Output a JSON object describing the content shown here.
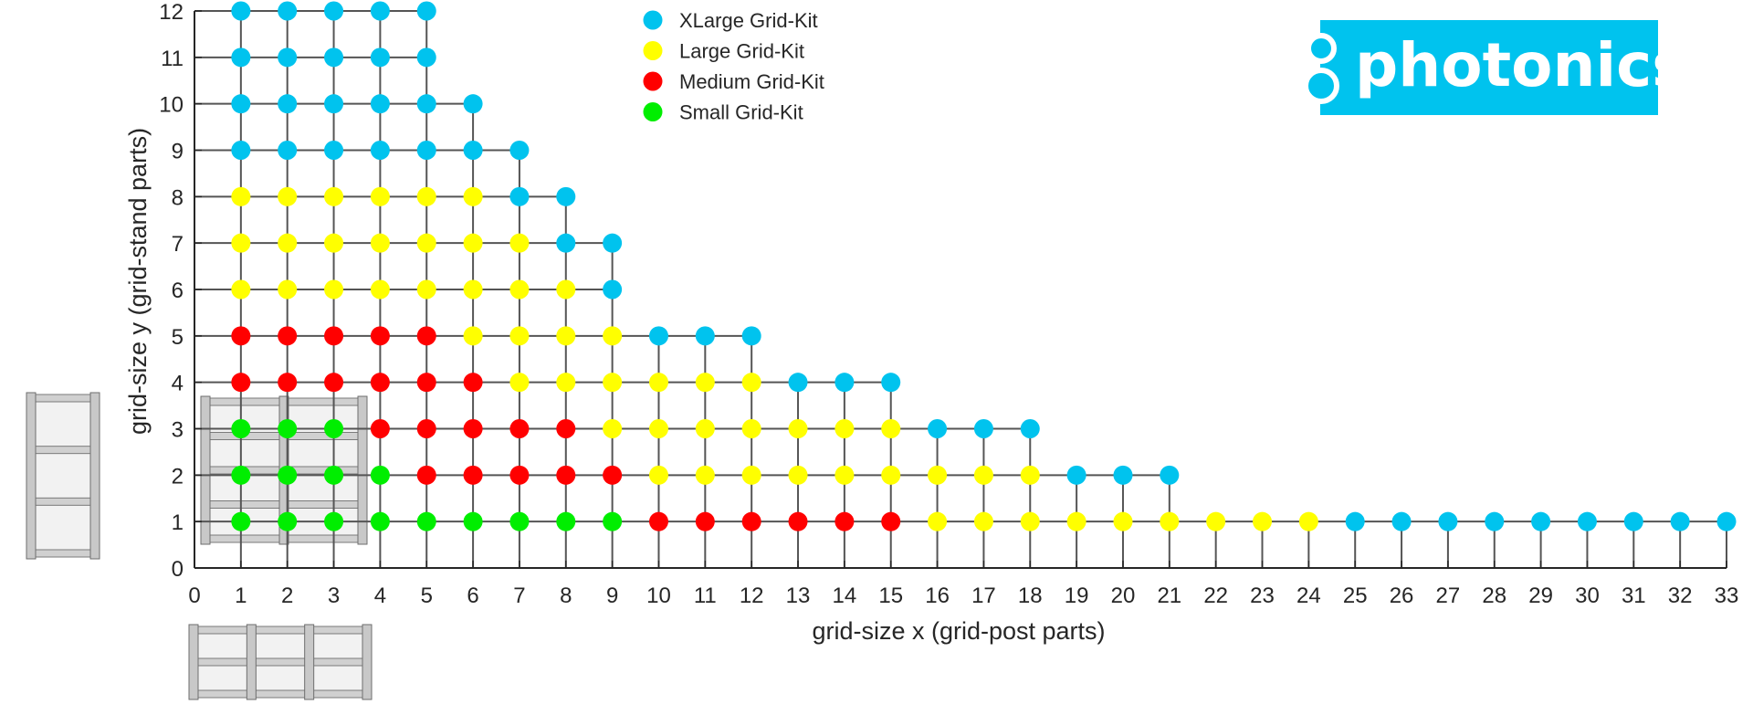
{
  "chart_data": {
    "type": "scatter",
    "xlabel": "grid-size x (grid-post parts)",
    "ylabel": "grid-size y (grid-stand parts)",
    "xlim": [
      0,
      33
    ],
    "ylim": [
      0,
      12
    ],
    "x_ticks": [
      0,
      1,
      2,
      3,
      4,
      5,
      6,
      7,
      8,
      9,
      10,
      11,
      12,
      13,
      14,
      15,
      16,
      17,
      18,
      19,
      20,
      21,
      22,
      23,
      24,
      25,
      26,
      27,
      28,
      29,
      30,
      31,
      32,
      33
    ],
    "y_ticks": [
      0,
      1,
      2,
      3,
      4,
      5,
      6,
      7,
      8,
      9,
      10,
      11,
      12
    ],
    "grid": false,
    "legend_position": "top-center",
    "series": [
      {
        "name": "XLarge Grid-Kit",
        "color": "#00c3ee",
        "points": [
          [
            1,
            12
          ],
          [
            2,
            12
          ],
          [
            3,
            12
          ],
          [
            4,
            12
          ],
          [
            5,
            12
          ],
          [
            1,
            11
          ],
          [
            2,
            11
          ],
          [
            3,
            11
          ],
          [
            4,
            11
          ],
          [
            5,
            11
          ],
          [
            1,
            10
          ],
          [
            2,
            10
          ],
          [
            3,
            10
          ],
          [
            4,
            10
          ],
          [
            5,
            10
          ],
          [
            6,
            10
          ],
          [
            1,
            9
          ],
          [
            2,
            9
          ],
          [
            3,
            9
          ],
          [
            4,
            9
          ],
          [
            5,
            9
          ],
          [
            6,
            9
          ],
          [
            7,
            9
          ],
          [
            7,
            8
          ],
          [
            8,
            8
          ],
          [
            8,
            7
          ],
          [
            9,
            7
          ],
          [
            9,
            6
          ],
          [
            10,
            5
          ],
          [
            11,
            5
          ],
          [
            12,
            5
          ],
          [
            13,
            4
          ],
          [
            14,
            4
          ],
          [
            15,
            4
          ],
          [
            16,
            3
          ],
          [
            17,
            3
          ],
          [
            18,
            3
          ],
          [
            19,
            2
          ],
          [
            20,
            2
          ],
          [
            21,
            2
          ],
          [
            25,
            1
          ],
          [
            26,
            1
          ],
          [
            27,
            1
          ],
          [
            28,
            1
          ],
          [
            29,
            1
          ],
          [
            30,
            1
          ],
          [
            31,
            1
          ],
          [
            32,
            1
          ],
          [
            33,
            1
          ]
        ]
      },
      {
        "name": "Large Grid-Kit",
        "color": "#ffff00",
        "points": [
          [
            1,
            8
          ],
          [
            2,
            8
          ],
          [
            3,
            8
          ],
          [
            4,
            8
          ],
          [
            5,
            8
          ],
          [
            6,
            8
          ],
          [
            1,
            7
          ],
          [
            2,
            7
          ],
          [
            3,
            7
          ],
          [
            4,
            7
          ],
          [
            5,
            7
          ],
          [
            6,
            7
          ],
          [
            7,
            7
          ],
          [
            1,
            6
          ],
          [
            2,
            6
          ],
          [
            3,
            6
          ],
          [
            4,
            6
          ],
          [
            5,
            6
          ],
          [
            6,
            6
          ],
          [
            7,
            6
          ],
          [
            8,
            6
          ],
          [
            6,
            5
          ],
          [
            7,
            5
          ],
          [
            8,
            5
          ],
          [
            9,
            5
          ],
          [
            7,
            4
          ],
          [
            8,
            4
          ],
          [
            9,
            4
          ],
          [
            10,
            4
          ],
          [
            11,
            4
          ],
          [
            12,
            4
          ],
          [
            9,
            3
          ],
          [
            10,
            3
          ],
          [
            11,
            3
          ],
          [
            12,
            3
          ],
          [
            13,
            3
          ],
          [
            14,
            3
          ],
          [
            15,
            3
          ],
          [
            10,
            2
          ],
          [
            11,
            2
          ],
          [
            12,
            2
          ],
          [
            13,
            2
          ],
          [
            14,
            2
          ],
          [
            15,
            2
          ],
          [
            16,
            2
          ],
          [
            17,
            2
          ],
          [
            18,
            2
          ],
          [
            16,
            1
          ],
          [
            17,
            1
          ],
          [
            18,
            1
          ],
          [
            19,
            1
          ],
          [
            20,
            1
          ],
          [
            21,
            1
          ],
          [
            22,
            1
          ],
          [
            23,
            1
          ],
          [
            24,
            1
          ]
        ]
      },
      {
        "name": "Medium Grid-Kit",
        "color": "#ff0000",
        "points": [
          [
            1,
            5
          ],
          [
            2,
            5
          ],
          [
            3,
            5
          ],
          [
            4,
            5
          ],
          [
            5,
            5
          ],
          [
            1,
            4
          ],
          [
            2,
            4
          ],
          [
            3,
            4
          ],
          [
            4,
            4
          ],
          [
            5,
            4
          ],
          [
            6,
            4
          ],
          [
            4,
            3
          ],
          [
            5,
            3
          ],
          [
            6,
            3
          ],
          [
            7,
            3
          ],
          [
            8,
            3
          ],
          [
            5,
            2
          ],
          [
            6,
            2
          ],
          [
            7,
            2
          ],
          [
            8,
            2
          ],
          [
            9,
            2
          ],
          [
            10,
            1
          ],
          [
            11,
            1
          ],
          [
            12,
            1
          ],
          [
            13,
            1
          ],
          [
            14,
            1
          ],
          [
            15,
            1
          ]
        ]
      },
      {
        "name": "Small Grid-Kit",
        "color": "#00ee00",
        "points": [
          [
            1,
            3
          ],
          [
            2,
            3
          ],
          [
            3,
            3
          ],
          [
            1,
            2
          ],
          [
            2,
            2
          ],
          [
            3,
            2
          ],
          [
            4,
            2
          ],
          [
            1,
            1
          ],
          [
            2,
            1
          ],
          [
            3,
            1
          ],
          [
            4,
            1
          ],
          [
            5,
            1
          ],
          [
            6,
            1
          ],
          [
            7,
            1
          ],
          [
            8,
            1
          ],
          [
            9,
            1
          ]
        ]
      }
    ]
  },
  "logo": {
    "text": "photonics",
    "color": "#00c3ee"
  },
  "images": {
    "left": "grid-frame-side-illustration",
    "bottom": "grid-frame-front-illustration"
  }
}
